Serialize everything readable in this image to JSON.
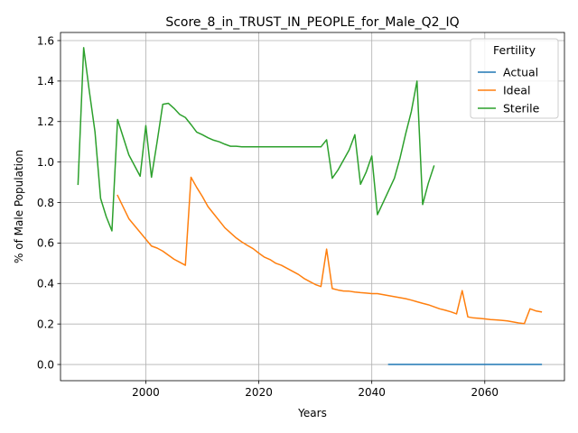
{
  "chart_data": {
    "type": "line",
    "title": "Score_8_in_TRUST_IN_PEOPLE_for_Male_Q2_IQ",
    "xlabel": "Years",
    "ylabel": "% of Male Population",
    "xlim": [
      1984.9,
      2074.1
    ],
    "ylim": [
      -0.08,
      1.64
    ],
    "xticks": [
      2000,
      2020,
      2040,
      2060
    ],
    "yticks": [
      0.0,
      0.2,
      0.4,
      0.6,
      0.8,
      1.0,
      1.2,
      1.4,
      1.6
    ],
    "xtick_labels": [
      "2000",
      "2020",
      "2040",
      "2060"
    ],
    "ytick_labels": [
      "0.0",
      "0.2",
      "0.4",
      "0.6",
      "0.8",
      "1.0",
      "1.2",
      "1.4",
      "1.6"
    ],
    "grid": true,
    "legend": {
      "title": "Fertility",
      "position": "top-right"
    },
    "series": [
      {
        "name": "Actual",
        "color": "#1f77b4",
        "x": [
          2043,
          2070
        ],
        "y": [
          0.0,
          0.0
        ]
      },
      {
        "name": "Ideal",
        "color": "#ff7f0e",
        "x": [
          1995,
          1997,
          2001,
          2002,
          2003,
          2004,
          2005,
          2006,
          2007,
          2008,
          2009,
          2010,
          2011,
          2012,
          2013,
          2014,
          2015,
          2016,
          2017,
          2018,
          2019,
          2020,
          2021,
          2022,
          2023,
          2024,
          2025,
          2026,
          2027,
          2028,
          2029,
          2030,
          2031,
          2032,
          2033,
          2034,
          2035,
          2036,
          2037,
          2038,
          2039,
          2040,
          2041,
          2042,
          2043,
          2044,
          2045,
          2046,
          2047,
          2048,
          2049,
          2050,
          2051,
          2052,
          2053,
          2054,
          2055,
          2056,
          2057,
          2058,
          2059,
          2060,
          2061,
          2062,
          2063,
          2064,
          2065,
          2066,
          2067,
          2068,
          2069,
          2070
        ],
        "y": [
          0.835,
          0.72,
          0.585,
          0.575,
          0.56,
          0.54,
          0.52,
          0.505,
          0.49,
          0.925,
          0.875,
          0.83,
          0.78,
          0.745,
          0.71,
          0.675,
          0.65,
          0.625,
          0.605,
          0.588,
          0.572,
          0.55,
          0.53,
          0.518,
          0.5,
          0.49,
          0.475,
          0.46,
          0.445,
          0.425,
          0.41,
          0.395,
          0.385,
          0.57,
          0.375,
          0.368,
          0.363,
          0.362,
          0.358,
          0.355,
          0.353,
          0.35,
          0.35,
          0.345,
          0.34,
          0.335,
          0.33,
          0.325,
          0.318,
          0.31,
          0.302,
          0.295,
          0.285,
          0.275,
          0.268,
          0.26,
          0.25,
          0.365,
          0.235,
          0.23,
          0.228,
          0.225,
          0.222,
          0.22,
          0.218,
          0.215,
          0.21,
          0.205,
          0.202,
          0.275,
          0.265,
          0.26
        ]
      },
      {
        "name": "Sterile",
        "color": "#2ca02c",
        "x": [
          1988,
          1989,
          1990,
          1991,
          1992,
          1993,
          1994,
          1995,
          1997,
          1999,
          2000,
          2001,
          2002,
          2003,
          2004,
          2005,
          2006,
          2007,
          2008,
          2009,
          2010,
          2011,
          2012,
          2013,
          2014,
          2015,
          2016,
          2017,
          2018,
          2019,
          2020,
          2021,
          2022,
          2023,
          2024,
          2025,
          2026,
          2027,
          2028,
          2029,
          2030,
          2031,
          2032,
          2033,
          2034,
          2035,
          2036,
          2037,
          2038,
          2039,
          2040,
          2041,
          2042,
          2043,
          2044,
          2045,
          2046,
          2047,
          2048,
          2049,
          2050,
          2051
        ],
        "y": [
          0.89,
          1.565,
          1.35,
          1.15,
          0.82,
          0.73,
          0.66,
          1.21,
          1.035,
          0.93,
          1.18,
          0.925,
          1.1,
          1.285,
          1.29,
          1.265,
          1.235,
          1.22,
          1.185,
          1.148,
          1.135,
          1.12,
          1.108,
          1.1,
          1.088,
          1.078,
          1.078,
          1.075,
          1.075,
          1.075,
          1.075,
          1.075,
          1.075,
          1.075,
          1.075,
          1.075,
          1.075,
          1.075,
          1.075,
          1.075,
          1.075,
          1.075,
          1.11,
          0.92,
          0.96,
          1.01,
          1.06,
          1.135,
          0.89,
          0.95,
          1.03,
          0.74,
          0.8,
          0.86,
          0.92,
          1.02,
          1.14,
          1.25,
          1.4,
          0.79,
          0.895,
          0.98
        ]
      }
    ]
  }
}
